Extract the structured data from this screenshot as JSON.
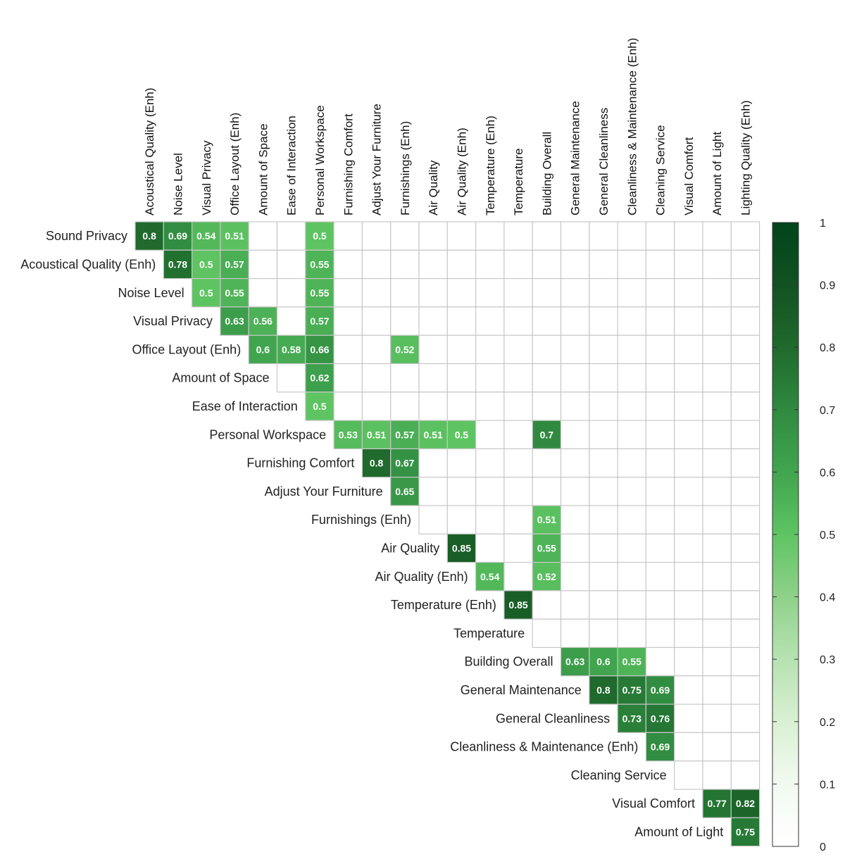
{
  "chart_data": {
    "type": "heatmap",
    "title": "",
    "columns": [
      "Acoustical Quality (Enh)",
      "Noise Level",
      "Visual Privacy",
      "Office Layout (Enh)",
      "Amount of Space",
      "Ease of Interaction",
      "Personal Workspace",
      "Furnishing Comfort",
      "Adjust Your Furniture",
      "Furnishings (Enh)",
      "Air Quality",
      "Air Quality (Enh)",
      "Temperature (Enh)",
      "Temperature",
      "Building Overall",
      "General Maintenance",
      "General Cleanliness",
      "Cleanliness & Maintenance (Enh)",
      "Cleaning Service",
      "Visual Comfort",
      "Amount of Light",
      "Lighting Quality (Enh)"
    ],
    "rows": [
      "Sound Privacy",
      "Acoustical Quality (Enh)",
      "Noise Level",
      "Visual Privacy",
      "Office Layout (Enh)",
      "Amount of Space",
      "Ease of Interaction",
      "Personal Workspace",
      "Furnishing Comfort",
      "Adjust Your Furniture",
      "Furnishings (Enh)",
      "Air Quality",
      "Air Quality (Enh)",
      "Temperature (Enh)",
      "Temperature",
      "Building Overall",
      "General Maintenance",
      "General Cleanliness",
      "Cleanliness & Maintenance (Enh)",
      "Cleaning Service",
      "Visual Comfort",
      "Amount of Light"
    ],
    "cells": [
      {
        "row": 0,
        "col": 0,
        "value": 0.8
      },
      {
        "row": 0,
        "col": 1,
        "value": 0.69
      },
      {
        "row": 0,
        "col": 2,
        "value": 0.54
      },
      {
        "row": 0,
        "col": 3,
        "value": 0.51
      },
      {
        "row": 0,
        "col": 6,
        "value": 0.5
      },
      {
        "row": 1,
        "col": 1,
        "value": 0.78
      },
      {
        "row": 1,
        "col": 2,
        "value": 0.5
      },
      {
        "row": 1,
        "col": 3,
        "value": 0.57
      },
      {
        "row": 1,
        "col": 6,
        "value": 0.55
      },
      {
        "row": 2,
        "col": 2,
        "value": 0.5
      },
      {
        "row": 2,
        "col": 3,
        "value": 0.55
      },
      {
        "row": 2,
        "col": 6,
        "value": 0.55
      },
      {
        "row": 3,
        "col": 3,
        "value": 0.63
      },
      {
        "row": 3,
        "col": 4,
        "value": 0.56
      },
      {
        "row": 3,
        "col": 6,
        "value": 0.57
      },
      {
        "row": 4,
        "col": 4,
        "value": 0.6
      },
      {
        "row": 4,
        "col": 5,
        "value": 0.58
      },
      {
        "row": 4,
        "col": 6,
        "value": 0.66
      },
      {
        "row": 4,
        "col": 9,
        "value": 0.52
      },
      {
        "row": 5,
        "col": 6,
        "value": 0.62
      },
      {
        "row": 6,
        "col": 6,
        "value": 0.5
      },
      {
        "row": 7,
        "col": 7,
        "value": 0.53
      },
      {
        "row": 7,
        "col": 8,
        "value": 0.51
      },
      {
        "row": 7,
        "col": 9,
        "value": 0.57
      },
      {
        "row": 7,
        "col": 10,
        "value": 0.51
      },
      {
        "row": 7,
        "col": 11,
        "value": 0.5
      },
      {
        "row": 7,
        "col": 14,
        "value": 0.7
      },
      {
        "row": 8,
        "col": 8,
        "value": 0.8
      },
      {
        "row": 8,
        "col": 9,
        "value": 0.67
      },
      {
        "row": 9,
        "col": 9,
        "value": 0.65
      },
      {
        "row": 10,
        "col": 14,
        "value": 0.51
      },
      {
        "row": 11,
        "col": 11,
        "value": 0.85
      },
      {
        "row": 11,
        "col": 14,
        "value": 0.55
      },
      {
        "row": 12,
        "col": 12,
        "value": 0.54
      },
      {
        "row": 12,
        "col": 14,
        "value": 0.52
      },
      {
        "row": 13,
        "col": 13,
        "value": 0.85
      },
      {
        "row": 15,
        "col": 15,
        "value": 0.63
      },
      {
        "row": 15,
        "col": 16,
        "value": 0.6
      },
      {
        "row": 15,
        "col": 17,
        "value": 0.55
      },
      {
        "row": 16,
        "col": 16,
        "value": 0.8
      },
      {
        "row": 16,
        "col": 17,
        "value": 0.75
      },
      {
        "row": 16,
        "col": 18,
        "value": 0.69
      },
      {
        "row": 17,
        "col": 17,
        "value": 0.73
      },
      {
        "row": 17,
        "col": 18,
        "value": 0.76
      },
      {
        "row": 18,
        "col": 18,
        "value": 0.69
      },
      {
        "row": 20,
        "col": 20,
        "value": 0.77
      },
      {
        "row": 20,
        "col": 21,
        "value": 0.82
      },
      {
        "row": 21,
        "col": 21,
        "value": 0.75
      }
    ],
    "colorbar": {
      "range": [
        0,
        1
      ],
      "ticks": [
        0,
        0.1,
        0.2,
        0.3,
        0.4,
        0.5,
        0.6,
        0.7,
        0.8,
        0.9,
        1
      ],
      "tick_labels": [
        "0",
        "0.1",
        "0.2",
        "0.3",
        "0.4",
        "0.5",
        "0.6",
        "0.7",
        "0.8",
        "0.9",
        "1"
      ],
      "color_low": "#ffffff",
      "color_high": "#00441b"
    },
    "colors": {
      "grid_line": "#c8c8c8",
      "cell_text": "#ffffff",
      "label_text": "#222222"
    }
  }
}
